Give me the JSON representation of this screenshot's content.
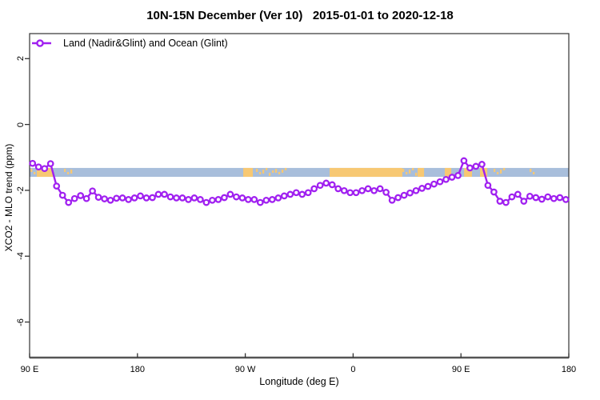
{
  "title": "10N-15N December (Ver 10)   2015-01-01 to 2020-12-18",
  "legend": {
    "label": "Land (Nadir&Glint) and Ocean (Glint)"
  },
  "colors": {
    "series_purple": "#A020F0",
    "ocean_band_blue": "#A8BEDB",
    "land_band_orange": "#F7C873",
    "frame": "#333333",
    "axis_line": "#555555",
    "text": "#000000",
    "background": "#ffffff"
  },
  "chart_data": {
    "type": "line",
    "title": "10N-15N December (Ver 10)   2015-01-01 to 2020-12-18",
    "xlabel": "Longitude (deg E)",
    "ylabel": "XCO2 - MLO trend (ppm)",
    "xlim": [
      90,
      540
    ],
    "ylim": [
      -7.08,
      2.76
    ],
    "grid": false,
    "legend_position": "top-left-inside",
    "x_ticks": [
      {
        "value": 90,
        "label": "90 E"
      },
      {
        "value": 180,
        "label": "180"
      },
      {
        "value": 270,
        "label": "90 W"
      },
      {
        "value": 360,
        "label": "0"
      },
      {
        "value": 450,
        "label": "90 E"
      },
      {
        "value": 540,
        "label": "180"
      }
    ],
    "y_ticks": [
      {
        "value": 2,
        "label": "2"
      },
      {
        "value": 0,
        "label": "0"
      },
      {
        "value": -2,
        "label": "-2"
      },
      {
        "value": -4,
        "label": "-4"
      },
      {
        "value": -6,
        "label": "-6"
      }
    ],
    "series": [
      {
        "name": "Land (Nadir&Glint) and Ocean (Glint)",
        "color": "#A020F0",
        "marker": "open-circle",
        "x": [
          92.5,
          97.5,
          102.5,
          107.5,
          112.5,
          117.5,
          122.5,
          127.5,
          132.5,
          137.5,
          142.5,
          147.5,
          152.5,
          157.5,
          162.5,
          167.5,
          172.5,
          177.5,
          182.5,
          187.5,
          192.5,
          197.5,
          202.5,
          207.5,
          212.5,
          217.5,
          222.5,
          227.5,
          232.5,
          237.5,
          242.5,
          247.5,
          252.5,
          257.5,
          262.5,
          267.5,
          272.5,
          277.5,
          282.5,
          287.5,
          292.5,
          297.5,
          302.5,
          307.5,
          312.5,
          317.5,
          322.5,
          327.5,
          332.5,
          337.5,
          342.5,
          347.5,
          352.5,
          357.5,
          362.5,
          367.5,
          372.5,
          377.5,
          382.5,
          387.5,
          392.5,
          397.5,
          402.5,
          407.5,
          412.5,
          417.5,
          422.5,
          427.5,
          432.5,
          437.5,
          442.5,
          447.5,
          452.5,
          457.5,
          462.5,
          467.5,
          472.5,
          477.5,
          482.5,
          487.5,
          492.5,
          497.5,
          502.5,
          507.5,
          512.5,
          517.5,
          522.5,
          527.5,
          532.5,
          537.5
        ],
        "y": [
          -1.18,
          -1.29,
          -1.34,
          -1.19,
          -1.87,
          -2.15,
          -2.37,
          -2.25,
          -2.16,
          -2.25,
          -2.02,
          -2.21,
          -2.26,
          -2.3,
          -2.24,
          -2.23,
          -2.28,
          -2.23,
          -2.17,
          -2.23,
          -2.22,
          -2.12,
          -2.12,
          -2.2,
          -2.23,
          -2.23,
          -2.28,
          -2.23,
          -2.28,
          -2.37,
          -2.3,
          -2.28,
          -2.22,
          -2.12,
          -2.2,
          -2.23,
          -2.28,
          -2.28,
          -2.37,
          -2.3,
          -2.28,
          -2.23,
          -2.17,
          -2.12,
          -2.07,
          -2.12,
          -2.07,
          -1.95,
          -1.85,
          -1.78,
          -1.83,
          -1.95,
          -2.01,
          -2.07,
          -2.07,
          -2.01,
          -1.95,
          -2.01,
          -1.95,
          -2.06,
          -2.3,
          -2.22,
          -2.15,
          -2.08,
          -2.01,
          -1.94,
          -1.88,
          -1.81,
          -1.74,
          -1.67,
          -1.6,
          -1.55,
          -1.1,
          -1.32,
          -1.27,
          -1.21,
          -1.85,
          -2.05,
          -2.33,
          -2.37,
          -2.2,
          -2.12,
          -2.33,
          -2.18,
          -2.22,
          -2.27,
          -2.2,
          -2.25,
          -2.22,
          -2.28
        ]
      }
    ],
    "land_ocean_band": {
      "description": "land/ocean map strip along the 10N-15N latitude band",
      "y_range": [
        -1.59,
        -1.32
      ],
      "ocean_color": "#A8BEDB",
      "land_color": "#F7C873",
      "land_segments": [
        {
          "start": 90.7,
          "end": 95.3,
          "style": "speckled"
        },
        {
          "start": 96.0,
          "end": 109.4,
          "style": "solid"
        },
        {
          "start": 118.7,
          "end": 126.7,
          "style": "speckled"
        },
        {
          "start": 268.3,
          "end": 276.3,
          "style": "solid"
        },
        {
          "start": 278.9,
          "end": 303.0,
          "style": "speckled"
        },
        {
          "start": 340.4,
          "end": 401.1,
          "style": "solid"
        },
        {
          "start": 401.1,
          "end": 413.8,
          "style": "speckled"
        },
        {
          "start": 413.8,
          "end": 419.2,
          "style": "solid"
        },
        {
          "start": 436.5,
          "end": 441.9,
          "style": "solid"
        },
        {
          "start": 452.6,
          "end": 459.2,
          "style": "solid"
        },
        {
          "start": 465.9,
          "end": 471.9,
          "style": "solid"
        },
        {
          "start": 477.2,
          "end": 485.9,
          "style": "speckled"
        },
        {
          "start": 507.3,
          "end": 510.0,
          "style": "speckled"
        }
      ]
    }
  }
}
